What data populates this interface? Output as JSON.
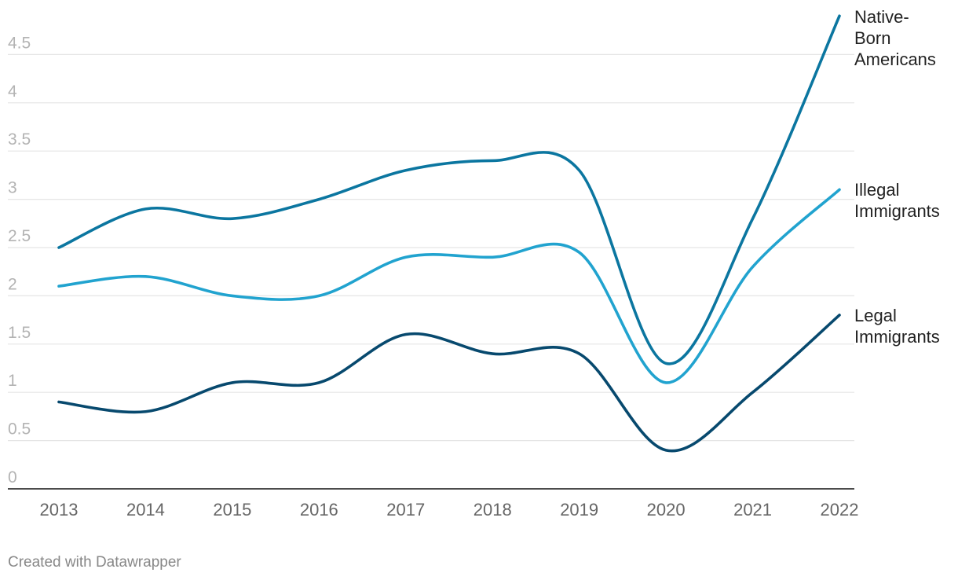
{
  "chart_data": {
    "type": "line",
    "x": [
      "2013",
      "2014",
      "2015",
      "2016",
      "2017",
      "2018",
      "2019",
      "2020",
      "2021",
      "2022"
    ],
    "y_ticks": [
      "0",
      "0.5",
      "1",
      "1.5",
      "2",
      "2.5",
      "3",
      "3.5",
      "4",
      "4.5"
    ],
    "ylim": [
      0,
      4.8
    ],
    "grid": true,
    "legend": "direct labels at line ends (right)",
    "series": [
      {
        "name": "Native-Born Americans",
        "label_lines": [
          "Native-",
          "Born",
          "Americans"
        ],
        "color": "#0b76a0",
        "values": [
          2.5,
          2.9,
          2.8,
          3.0,
          3.3,
          3.4,
          3.3,
          1.3,
          2.8,
          4.9
        ]
      },
      {
        "name": "Illegal Immigrants",
        "label_lines": [
          "Illegal",
          "Immigrants"
        ],
        "color": "#21a3cf",
        "values": [
          2.1,
          2.2,
          2.0,
          2.0,
          2.4,
          2.4,
          2.45,
          1.1,
          2.3,
          3.1
        ]
      },
      {
        "name": "Legal Immigrants",
        "label_lines": [
          "Legal",
          "Immigrants"
        ],
        "color": "#07496e",
        "values": [
          0.9,
          0.8,
          1.1,
          1.1,
          1.6,
          1.4,
          1.4,
          0.4,
          1.0,
          1.8
        ]
      }
    ]
  },
  "footer": {
    "credit": "Created with Datawrapper"
  }
}
